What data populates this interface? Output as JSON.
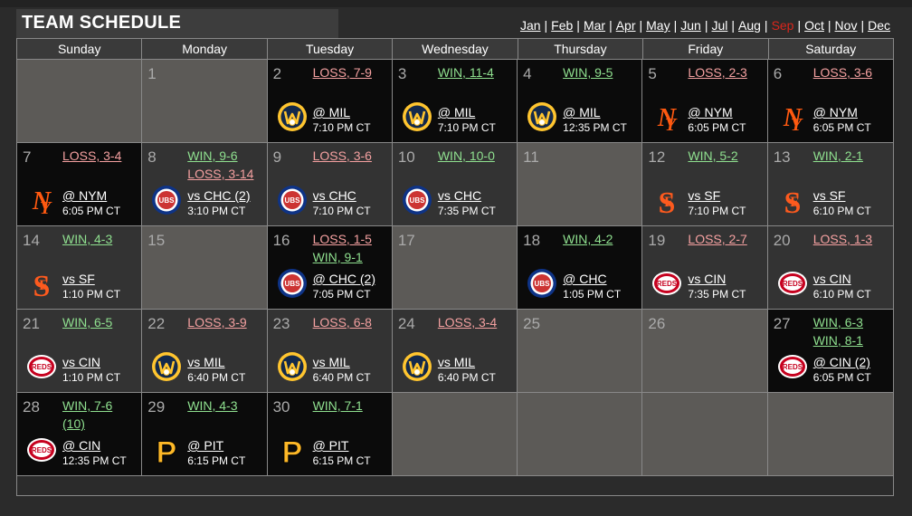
{
  "title": "TEAM SCHEDULE",
  "months": [
    {
      "label": "Jan",
      "current": false
    },
    {
      "label": "Feb",
      "current": false
    },
    {
      "label": "Mar",
      "current": false
    },
    {
      "label": "Apr",
      "current": false
    },
    {
      "label": "May",
      "current": false
    },
    {
      "label": "Jun",
      "current": false
    },
    {
      "label": "Jul",
      "current": false
    },
    {
      "label": "Aug",
      "current": false
    },
    {
      "label": "Sep",
      "current": true
    },
    {
      "label": "Oct",
      "current": false
    },
    {
      "label": "Nov",
      "current": false
    },
    {
      "label": "Dec",
      "current": false
    }
  ],
  "weekdays": [
    "Sunday",
    "Monday",
    "Tuesday",
    "Wednesday",
    "Thursday",
    "Friday",
    "Saturday"
  ],
  "days": [
    {
      "kind": "empty"
    },
    {
      "day": "1",
      "kind": "blank",
      "results": []
    },
    {
      "day": "2",
      "kind": "away",
      "results": [
        {
          "text": "LOSS, 7-9",
          "type": "loss"
        }
      ],
      "opponent": "@ MIL",
      "time": "7:10 PM CT",
      "logo": "brewers"
    },
    {
      "day": "3",
      "kind": "away",
      "results": [
        {
          "text": "WIN, 11-4",
          "type": "win"
        }
      ],
      "opponent": "@ MIL",
      "time": "7:10 PM CT",
      "logo": "brewers"
    },
    {
      "day": "4",
      "kind": "away",
      "results": [
        {
          "text": "WIN, 9-5",
          "type": "win"
        }
      ],
      "opponent": "@ MIL",
      "time": "12:35 PM CT",
      "logo": "brewers"
    },
    {
      "day": "5",
      "kind": "away",
      "results": [
        {
          "text": "LOSS, 2-3",
          "type": "loss"
        }
      ],
      "opponent": "@ NYM",
      "time": "6:05 PM CT",
      "logo": "mets"
    },
    {
      "day": "6",
      "kind": "away",
      "results": [
        {
          "text": "LOSS, 3-6",
          "type": "loss"
        }
      ],
      "opponent": "@ NYM",
      "time": "6:05 PM CT",
      "logo": "mets"
    },
    {
      "day": "7",
      "kind": "away",
      "results": [
        {
          "text": "LOSS, 3-4",
          "type": "loss"
        }
      ],
      "opponent": "@ NYM",
      "time": "6:05 PM CT",
      "logo": "mets"
    },
    {
      "day": "8",
      "kind": "home",
      "results": [
        {
          "text": "WIN, 9-6",
          "type": "win"
        },
        {
          "text": "LOSS, 3-14",
          "type": "loss"
        }
      ],
      "opponent": "vs CHC (2)",
      "time": "3:10 PM CT",
      "logo": "cubs"
    },
    {
      "day": "9",
      "kind": "home",
      "results": [
        {
          "text": "LOSS, 3-6",
          "type": "loss"
        }
      ],
      "opponent": "vs CHC",
      "time": "7:10 PM CT",
      "logo": "cubs"
    },
    {
      "day": "10",
      "kind": "home",
      "results": [
        {
          "text": "WIN, 10-0",
          "type": "win"
        }
      ],
      "opponent": "vs CHC",
      "time": "7:35 PM CT",
      "logo": "cubs"
    },
    {
      "day": "11",
      "kind": "blank",
      "results": []
    },
    {
      "day": "12",
      "kind": "home",
      "results": [
        {
          "text": "WIN, 5-2",
          "type": "win"
        }
      ],
      "opponent": "vs SF",
      "time": "7:10 PM CT",
      "logo": "giants"
    },
    {
      "day": "13",
      "kind": "home",
      "results": [
        {
          "text": "WIN, 2-1",
          "type": "win"
        }
      ],
      "opponent": "vs SF",
      "time": "6:10 PM CT",
      "logo": "giants"
    },
    {
      "day": "14",
      "kind": "home",
      "results": [
        {
          "text": "WIN, 4-3",
          "type": "win"
        }
      ],
      "opponent": "vs SF",
      "time": "1:10 PM CT",
      "logo": "giants"
    },
    {
      "day": "15",
      "kind": "blank",
      "results": []
    },
    {
      "day": "16",
      "kind": "away",
      "results": [
        {
          "text": "LOSS, 1-5",
          "type": "loss"
        },
        {
          "text": "WIN, 9-1",
          "type": "win"
        }
      ],
      "opponent": "@ CHC (2)",
      "time": "7:05 PM CT",
      "logo": "cubs"
    },
    {
      "day": "17",
      "kind": "blank",
      "results": []
    },
    {
      "day": "18",
      "kind": "away",
      "results": [
        {
          "text": "WIN, 4-2",
          "type": "win"
        }
      ],
      "opponent": "@ CHC",
      "time": "1:05 PM CT",
      "logo": "cubs"
    },
    {
      "day": "19",
      "kind": "home",
      "results": [
        {
          "text": "LOSS, 2-7",
          "type": "loss"
        }
      ],
      "opponent": "vs CIN",
      "time": "7:35 PM CT",
      "logo": "reds"
    },
    {
      "day": "20",
      "kind": "home",
      "results": [
        {
          "text": "LOSS, 1-3",
          "type": "loss"
        }
      ],
      "opponent": "vs CIN",
      "time": "6:10 PM CT",
      "logo": "reds"
    },
    {
      "day": "21",
      "kind": "home",
      "results": [
        {
          "text": "WIN, 6-5",
          "type": "win"
        }
      ],
      "opponent": "vs CIN",
      "time": "1:10 PM CT",
      "logo": "reds"
    },
    {
      "day": "22",
      "kind": "home",
      "results": [
        {
          "text": "LOSS, 3-9",
          "type": "loss"
        }
      ],
      "opponent": "vs MIL",
      "time": "6:40 PM CT",
      "logo": "brewers"
    },
    {
      "day": "23",
      "kind": "home",
      "results": [
        {
          "text": "LOSS, 6-8",
          "type": "loss"
        }
      ],
      "opponent": "vs MIL",
      "time": "6:40 PM CT",
      "logo": "brewers"
    },
    {
      "day": "24",
      "kind": "home",
      "results": [
        {
          "text": "LOSS, 3-4",
          "type": "loss"
        }
      ],
      "opponent": "vs MIL",
      "time": "6:40 PM CT",
      "logo": "brewers"
    },
    {
      "day": "25",
      "kind": "blank",
      "results": []
    },
    {
      "day": "26",
      "kind": "blank",
      "results": []
    },
    {
      "day": "27",
      "kind": "away",
      "results": [
        {
          "text": "WIN, 6-3",
          "type": "win"
        },
        {
          "text": "WIN, 8-1",
          "type": "win"
        }
      ],
      "opponent": "@ CIN (2)",
      "time": "6:05 PM CT",
      "logo": "reds"
    },
    {
      "day": "28",
      "kind": "away",
      "results": [
        {
          "text": "WIN, 7-6",
          "type": "win"
        },
        {
          "text": "(10)",
          "type": "win"
        }
      ],
      "opponent": "@ CIN",
      "time": "12:35 PM CT",
      "logo": "reds"
    },
    {
      "day": "29",
      "kind": "away",
      "results": [
        {
          "text": "WIN, 4-3",
          "type": "win"
        }
      ],
      "opponent": "@ PIT",
      "time": "6:15 PM CT",
      "logo": "pirates"
    },
    {
      "day": "30",
      "kind": "away",
      "results": [
        {
          "text": "WIN, 7-1",
          "type": "win"
        }
      ],
      "opponent": "@ PIT",
      "time": "6:15 PM CT",
      "logo": "pirates"
    },
    {
      "kind": "empty"
    },
    {
      "kind": "empty"
    },
    {
      "kind": "empty"
    },
    {
      "kind": "empty"
    }
  ],
  "logo_colors": {
    "brewers": "#13294b",
    "brewers_accent": "#ffc52f",
    "mets": "#ff5910",
    "cubs_blue": "#0e3386",
    "cubs_red": "#cc3433",
    "giants": "#fd5a1e",
    "reds": "#c6011f",
    "pirates": "#fdb827"
  }
}
